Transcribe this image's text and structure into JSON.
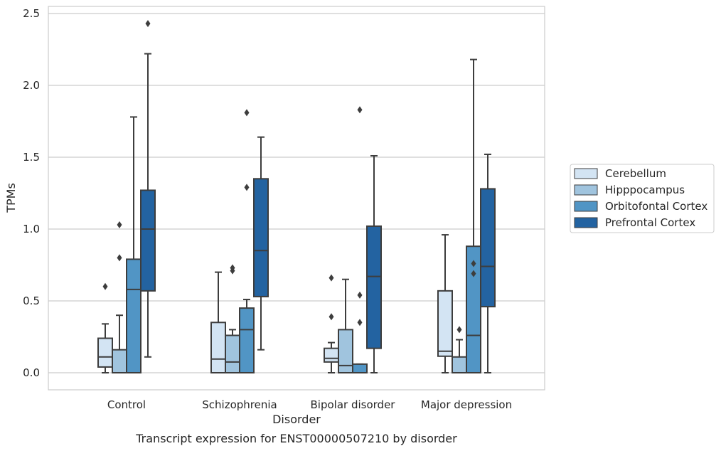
{
  "chart_data": {
    "type": "box",
    "categories": [
      "Control",
      "Schizophrenia",
      "Bipolar disorder",
      "Major depression"
    ],
    "xlabel": "Disorder",
    "ylabel": "TPMs",
    "caption": "Transcript expression for ENST00000507210 by disorder",
    "ylim": [
      -0.12,
      2.55
    ],
    "yticks": [
      "0.0",
      "0.5",
      "1.0",
      "1.5",
      "2.0",
      "2.5"
    ],
    "grid": "horizontal",
    "legend_position": "right",
    "series": [
      {
        "name": "Cerebellum",
        "color": "#d3e4f3",
        "boxes": [
          {
            "whislo": 0.0,
            "q1": 0.04,
            "med": 0.11,
            "q3": 0.24,
            "whishi": 0.34,
            "fliers": [
              0.6
            ]
          },
          {
            "whislo": 0.0,
            "q1": 0.0,
            "med": 0.095,
            "q3": 0.35,
            "whishi": 0.7,
            "fliers": []
          },
          {
            "whislo": 0.0,
            "q1": 0.075,
            "med": 0.1,
            "q3": 0.17,
            "whishi": 0.21,
            "fliers": [
              0.39,
              0.66
            ]
          },
          {
            "whislo": 0.0,
            "q1": 0.115,
            "med": 0.15,
            "q3": 0.57,
            "whishi": 0.96,
            "fliers": []
          }
        ]
      },
      {
        "name": "Hipppocampus",
        "color": "#a0c4de",
        "boxes": [
          {
            "whislo": 0.0,
            "q1": 0.0,
            "med": 0.0,
            "q3": 0.16,
            "whishi": 0.4,
            "fliers": [
              0.8,
              1.03
            ]
          },
          {
            "whislo": 0.0,
            "q1": 0.0,
            "med": 0.075,
            "q3": 0.26,
            "whishi": 0.3,
            "fliers": [
              0.71,
              0.73
            ]
          },
          {
            "whislo": 0.0,
            "q1": 0.0,
            "med": 0.05,
            "q3": 0.3,
            "whishi": 0.65,
            "fliers": []
          },
          {
            "whislo": 0.0,
            "q1": 0.0,
            "med": 0.0,
            "q3": 0.11,
            "whishi": 0.23,
            "fliers": [
              0.3
            ]
          }
        ]
      },
      {
        "name": "Orbitofontal Cortex",
        "color": "#5195c5",
        "boxes": [
          {
            "whislo": 0.0,
            "q1": 0.0,
            "med": 0.58,
            "q3": 0.79,
            "whishi": 1.78,
            "fliers": []
          },
          {
            "whislo": 0.0,
            "q1": 0.0,
            "med": 0.3,
            "q3": 0.45,
            "whishi": 0.51,
            "fliers": [
              1.29,
              1.81
            ]
          },
          {
            "whislo": 0.0,
            "q1": 0.0,
            "med": 0.0,
            "q3": 0.06,
            "whishi": 0.06,
            "fliers": [
              0.35,
              0.54,
              1.83
            ]
          },
          {
            "whislo": 0.0,
            "q1": 0.0,
            "med": 0.26,
            "q3": 0.88,
            "whishi": 2.18,
            "fliers": [
              0.69,
              0.76
            ]
          }
        ]
      },
      {
        "name": "Prefrontal Cortex",
        "color": "#2363a1",
        "boxes": [
          {
            "whislo": 0.11,
            "q1": 0.57,
            "med": 1.0,
            "q3": 1.27,
            "whishi": 2.22,
            "fliers": [
              2.43
            ]
          },
          {
            "whislo": 0.16,
            "q1": 0.53,
            "med": 0.85,
            "q3": 1.35,
            "whishi": 1.64,
            "fliers": []
          },
          {
            "whislo": 0.0,
            "q1": 0.17,
            "med": 0.67,
            "q3": 1.02,
            "whishi": 1.51,
            "fliers": []
          },
          {
            "whislo": 0.0,
            "q1": 0.46,
            "med": 0.74,
            "q3": 1.28,
            "whishi": 1.52,
            "fliers": []
          }
        ]
      }
    ]
  }
}
